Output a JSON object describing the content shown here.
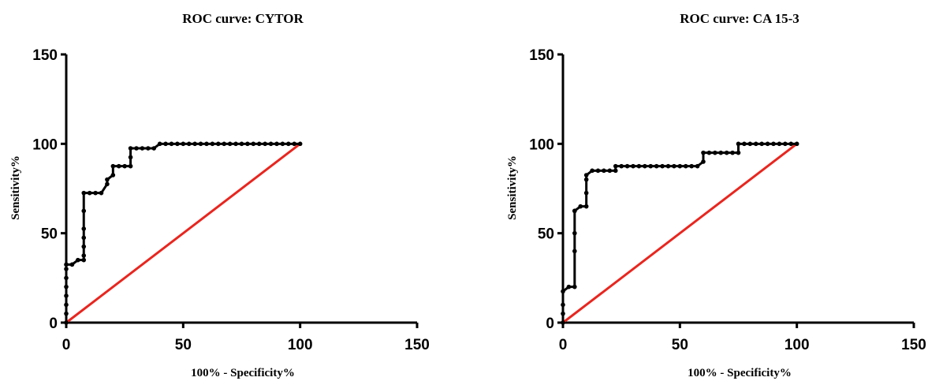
{
  "chart_data": [
    {
      "type": "line",
      "title": "ROC curve: CYTOR",
      "xlabel": "100% - Specificity%",
      "ylabel": "Sensitivity%",
      "xlim": [
        0,
        150
      ],
      "ylim": [
        0,
        150
      ],
      "x_ticks": [
        "0",
        "50",
        "100",
        "150"
      ],
      "y_ticks": [
        "0",
        "50",
        "100",
        "150"
      ],
      "grid": false,
      "series": [
        {
          "color": "#000000",
          "marker": "circle",
          "x": [
            0,
            0,
            0,
            0,
            0,
            0,
            0,
            0,
            2.5,
            5,
            7.5,
            7.5,
            7.5,
            7.5,
            7.5,
            7.5,
            7.5,
            10,
            12.5,
            15,
            17.5,
            17.5,
            20,
            20,
            22.5,
            25,
            27.5,
            27.5,
            27.5,
            30,
            32.5,
            35,
            37.5,
            40,
            42.5,
            45,
            47.5,
            50,
            52.5,
            55,
            57.5,
            60,
            62.5,
            65,
            67.5,
            70,
            72.5,
            75,
            77.5,
            80,
            82.5,
            85,
            87.5,
            90,
            92.5,
            95,
            97.5,
            100
          ],
          "y": [
            0,
            5,
            10,
            15,
            20,
            25,
            30,
            32.5,
            32.5,
            35,
            35,
            37.5,
            42.5,
            47.5,
            52.5,
            62.5,
            72.5,
            72.5,
            72.5,
            72.5,
            77.5,
            80,
            82.5,
            87.5,
            87.5,
            87.5,
            87.5,
            92.5,
            97.5,
            97.5,
            97.5,
            97.5,
            97.5,
            100,
            100,
            100,
            100,
            100,
            100,
            100,
            100,
            100,
            100,
            100,
            100,
            100,
            100,
            100,
            100,
            100,
            100,
            100,
            100,
            100,
            100,
            100,
            100,
            100
          ]
        },
        {
          "color": "#e8261f",
          "marker": "none",
          "x": [
            0,
            100
          ],
          "y": [
            0,
            100
          ]
        }
      ]
    },
    {
      "type": "line",
      "title": "ROC curve: CA 15-3",
      "xlabel": "100% - Specificity%",
      "ylabel": "Sensitivity%",
      "xlim": [
        0,
        150
      ],
      "ylim": [
        0,
        150
      ],
      "x_ticks": [
        "0",
        "50",
        "100",
        "150"
      ],
      "y_ticks": [
        "0",
        "50",
        "100",
        "150"
      ],
      "grid": false,
      "series": [
        {
          "color": "#000000",
          "marker": "circle",
          "x": [
            0,
            0,
            0,
            0,
            2.5,
            5,
            5,
            5,
            5,
            5,
            7.5,
            10,
            10,
            10,
            10,
            12.5,
            15,
            17.5,
            20,
            22.5,
            22.5,
            25,
            27.5,
            30,
            32.5,
            35,
            37.5,
            40,
            42.5,
            45,
            47.5,
            50,
            52.5,
            55,
            57.5,
            60,
            60,
            62.5,
            65,
            67.5,
            70,
            72.5,
            75,
            75,
            77.5,
            80,
            82.5,
            85,
            87.5,
            90,
            92.5,
            95,
            97.5,
            100
          ],
          "y": [
            0,
            5,
            10,
            17.5,
            20,
            20,
            40,
            50,
            62.5,
            62.5,
            65,
            65,
            72.5,
            80,
            82.5,
            85,
            85,
            85,
            85,
            85,
            87.5,
            87.5,
            87.5,
            87.5,
            87.5,
            87.5,
            87.5,
            87.5,
            87.5,
            87.5,
            87.5,
            87.5,
            87.5,
            87.5,
            87.5,
            90,
            95,
            95,
            95,
            95,
            95,
            95,
            95,
            100,
            100,
            100,
            100,
            100,
            100,
            100,
            100,
            100,
            100,
            100
          ]
        },
        {
          "color": "#e8261f",
          "marker": "none",
          "x": [
            0,
            100
          ],
          "y": [
            0,
            100
          ]
        }
      ]
    }
  ]
}
